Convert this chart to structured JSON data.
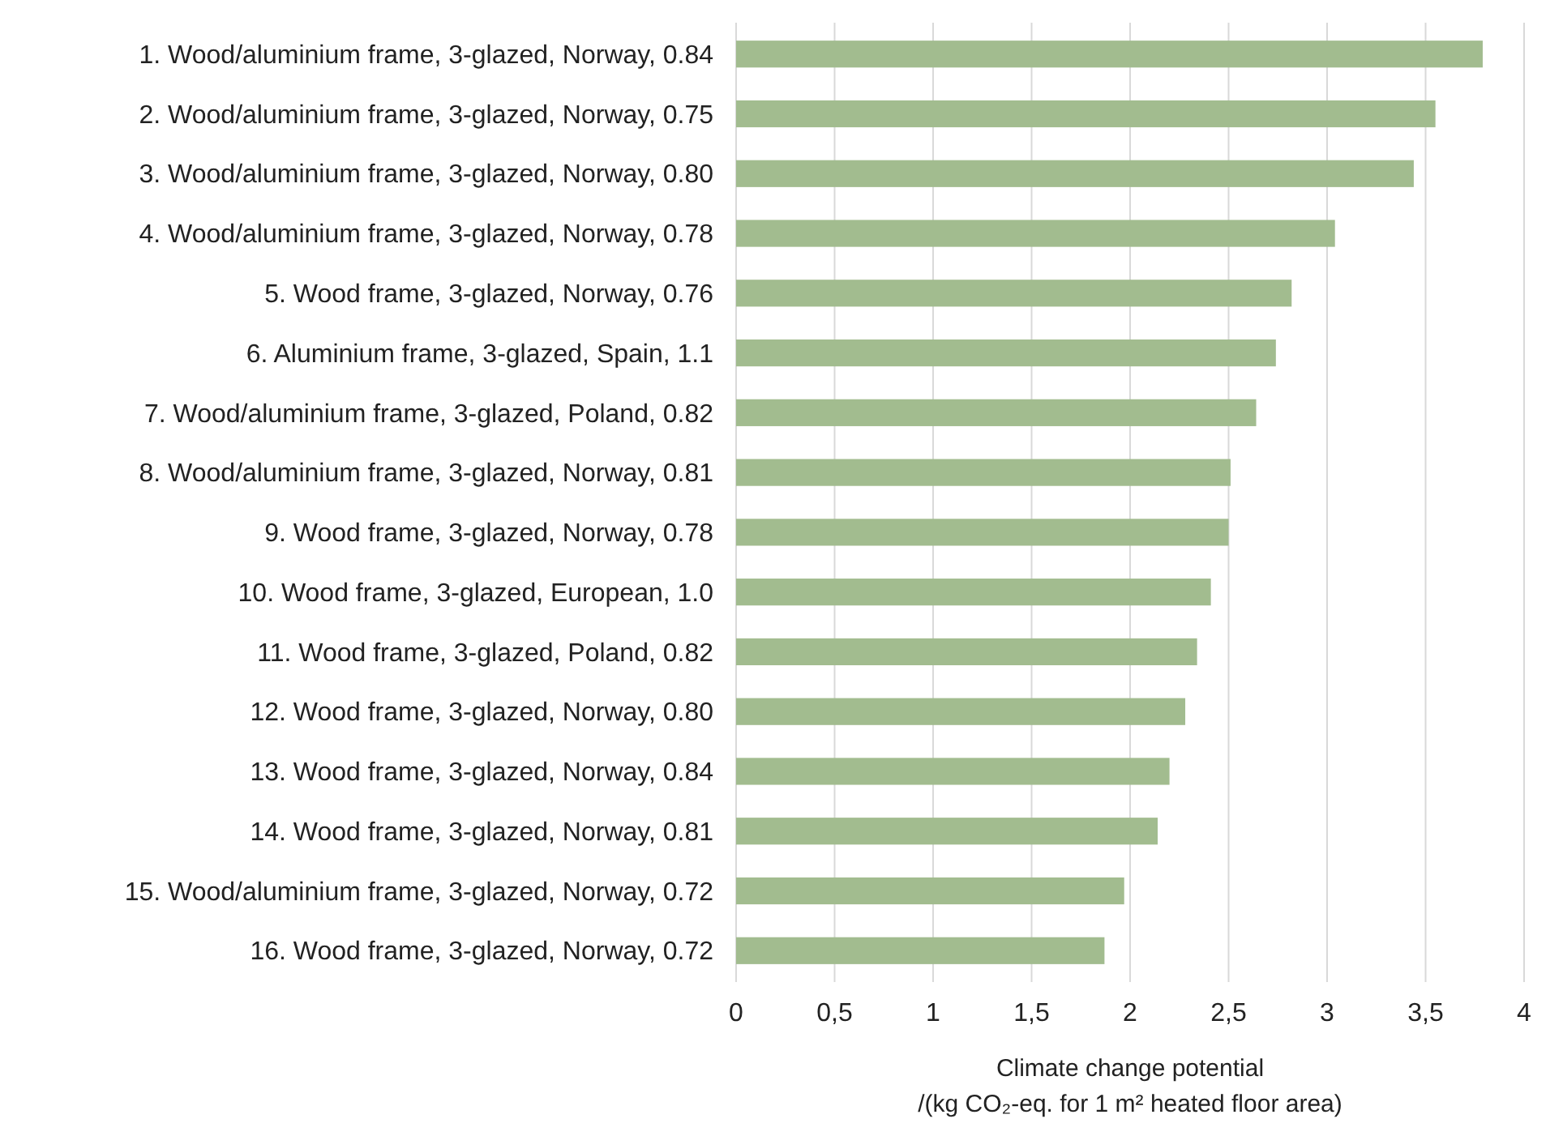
{
  "chart_data": {
    "type": "bar",
    "orientation": "horizontal",
    "xlabel": "Climate change potential\n/(kg CO₂-eq. for 1 m² heated floor area)",
    "categories": [
      "1. Wood/aluminium frame, 3-glazed, Norway, 0.84",
      "2. Wood/aluminium frame, 3-glazed, Norway, 0.75",
      "3. Wood/aluminium frame, 3-glazed, Norway, 0.80",
      "4. Wood/aluminium frame, 3-glazed, Norway, 0.78",
      "5. Wood frame, 3-glazed, Norway, 0.76",
      "6. Aluminium frame, 3-glazed, Spain, 1.1",
      "7. Wood/aluminium frame, 3-glazed, Poland, 0.82",
      "8. Wood/aluminium frame, 3-glazed, Norway, 0.81",
      "9. Wood frame, 3-glazed, Norway, 0.78",
      "10. Wood frame, 3-glazed, European, 1.0",
      "11. Wood frame, 3-glazed, Poland, 0.82",
      "12. Wood frame, 3-glazed, Norway, 0.80",
      "13. Wood frame, 3-glazed, Norway, 0.84",
      "14. Wood frame, 3-glazed, Norway, 0.81",
      "15. Wood/aluminium frame, 3-glazed, Norway, 0.72",
      "16. Wood frame, 3-glazed, Norway, 0.72"
    ],
    "values": [
      3.79,
      3.55,
      3.44,
      3.04,
      2.82,
      2.74,
      2.64,
      2.51,
      2.5,
      2.41,
      2.34,
      2.28,
      2.2,
      2.14,
      1.97,
      1.87
    ],
    "color": "#a2bc8f",
    "xlim": [
      0,
      4
    ],
    "xticks": [
      0,
      {
        "value": 0.5,
        "label": "0,5"
      },
      1,
      {
        "value": 1.5,
        "label": "1,5"
      },
      2,
      {
        "value": 2.5,
        "label": "2,5"
      },
      3,
      {
        "value": 3.5,
        "label": "3,5"
      },
      4
    ],
    "grid": "x"
  }
}
